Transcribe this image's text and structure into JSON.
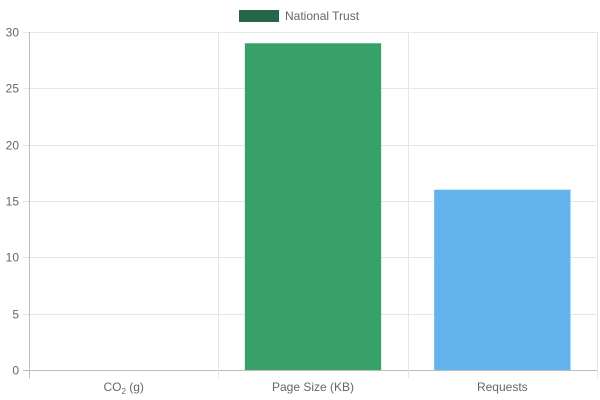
{
  "chart_data": {
    "type": "bar",
    "categories": [
      "CO2 (g)",
      "Page Size (KB)",
      "Requests"
    ],
    "category_labels": [
      {
        "main": "CO",
        "sub": "2",
        "rest": " (g)"
      },
      {
        "main": "Page Size (KB)",
        "sub": "",
        "rest": ""
      },
      {
        "main": "Requests",
        "sub": "",
        "rest": ""
      }
    ],
    "series": [
      {
        "name": "National Trust",
        "values": [
          0,
          29,
          16
        ],
        "bar_colors": [
          "#38a169",
          "#38a169",
          "#63b3ed"
        ]
      }
    ],
    "legend_color": "#276749",
    "ylim": [
      0,
      30
    ],
    "yticks": [
      0,
      5,
      10,
      15,
      20,
      25,
      30
    ],
    "grid": true,
    "legend_position": "top-center"
  }
}
